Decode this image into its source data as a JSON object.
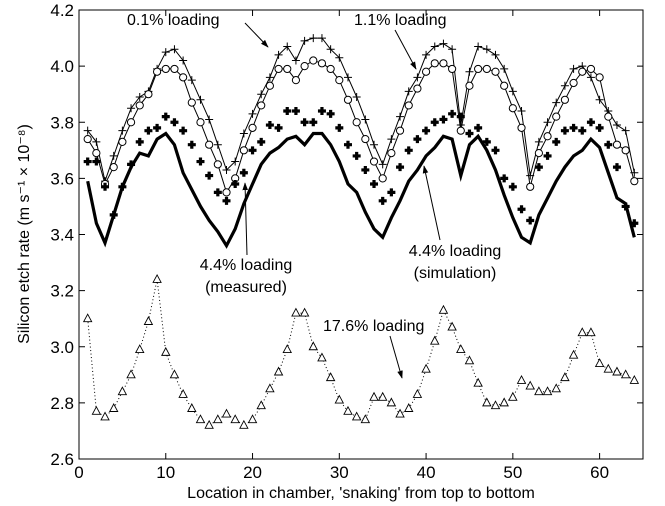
{
  "chart_data": {
    "type": "line",
    "title": "",
    "xlabel": "Location in chamber, 'snaking' from top to bottom",
    "ylabel": "Silicon etch rate (m s⁻¹ × 10⁻⁸)",
    "xlim": [
      0,
      65
    ],
    "ylim": [
      2.6,
      4.2
    ],
    "grid": false,
    "legend": "none",
    "xticks": [
      "0",
      "10",
      "20",
      "30",
      "40",
      "50",
      "60"
    ],
    "yticks": [
      "2.6",
      "2.8",
      "3.0",
      "3.2",
      "3.4",
      "3.6",
      "3.8",
      "4.0",
      "4.2"
    ],
    "x": [
      1,
      2,
      3,
      4,
      5,
      6,
      7,
      8,
      9,
      10,
      11,
      12,
      13,
      14,
      15,
      16,
      17,
      18,
      19,
      20,
      21,
      22,
      23,
      24,
      25,
      26,
      27,
      28,
      29,
      30,
      31,
      32,
      33,
      34,
      35,
      36,
      37,
      38,
      39,
      40,
      41,
      42,
      43,
      44,
      45,
      46,
      47,
      48,
      49,
      50,
      51,
      52,
      53,
      54,
      55,
      56,
      57,
      58,
      59,
      60,
      61,
      62,
      63,
      64
    ],
    "series": [
      {
        "name": "0.1% loading",
        "marker": "+",
        "line": "thin",
        "values": [
          3.77,
          3.73,
          3.59,
          3.68,
          3.77,
          3.85,
          3.89,
          3.91,
          3.99,
          4.05,
          4.06,
          4.02,
          3.95,
          3.88,
          3.81,
          3.72,
          3.63,
          3.66,
          3.76,
          3.83,
          3.9,
          3.96,
          4.04,
          4.07,
          4.02,
          4.09,
          4.1,
          4.1,
          4.06,
          4.03,
          3.96,
          3.89,
          3.81,
          3.72,
          3.65,
          3.74,
          3.82,
          3.91,
          3.96,
          4.04,
          4.07,
          4.08,
          4.06,
          3.79,
          3.98,
          4.07,
          4.06,
          4.04,
          3.99,
          3.91,
          3.84,
          3.61,
          3.73,
          3.8,
          3.87,
          3.93,
          3.99,
          4.0,
          3.96,
          3.88,
          3.84,
          3.79,
          3.77,
          3.62
        ]
      },
      {
        "name": "1.1% loading",
        "marker": "o",
        "line": "thin",
        "values": [
          3.74,
          3.69,
          3.58,
          3.64,
          3.73,
          3.8,
          3.86,
          3.9,
          3.98,
          3.99,
          3.99,
          3.96,
          3.87,
          3.8,
          3.72,
          3.65,
          3.55,
          3.6,
          3.7,
          3.78,
          3.86,
          3.93,
          3.99,
          3.99,
          3.95,
          4.0,
          4.02,
          4.01,
          3.99,
          3.95,
          3.88,
          3.8,
          3.74,
          3.66,
          3.6,
          3.69,
          3.77,
          3.86,
          3.92,
          3.98,
          4.01,
          4.01,
          3.99,
          3.77,
          3.93,
          3.99,
          3.99,
          3.98,
          3.93,
          3.85,
          3.78,
          3.57,
          3.69,
          3.75,
          3.82,
          3.88,
          3.94,
          3.98,
          3.99,
          3.96,
          3.82,
          3.72,
          3.7,
          3.59
        ]
      },
      {
        "name": "4.4% loading (measured)",
        "marker": "*",
        "line": "none",
        "values": [
          3.66,
          3.66,
          3.57,
          3.47,
          3.57,
          3.65,
          3.73,
          3.77,
          3.78,
          3.82,
          3.8,
          3.77,
          3.72,
          3.66,
          3.61,
          3.55,
          3.52,
          3.58,
          3.62,
          3.7,
          3.73,
          3.79,
          3.78,
          3.84,
          3.84,
          3.8,
          3.8,
          3.84,
          3.83,
          3.78,
          3.72,
          3.68,
          3.63,
          3.58,
          3.52,
          3.55,
          3.64,
          3.7,
          3.74,
          3.77,
          3.8,
          3.81,
          3.83,
          3.82,
          3.76,
          3.78,
          3.73,
          3.7,
          3.6,
          3.57,
          3.49,
          3.45,
          3.64,
          3.68,
          3.73,
          3.77,
          3.78,
          3.77,
          3.8,
          3.78,
          3.72,
          3.64,
          3.5,
          3.44
        ]
      },
      {
        "name": "4.4% loading (simulation)",
        "marker": "none",
        "line": "thick",
        "values": [
          3.59,
          3.44,
          3.37,
          3.47,
          3.57,
          3.64,
          3.69,
          3.68,
          3.74,
          3.76,
          3.72,
          3.62,
          3.56,
          3.5,
          3.45,
          3.41,
          3.36,
          3.42,
          3.51,
          3.58,
          3.65,
          3.69,
          3.71,
          3.74,
          3.75,
          3.72,
          3.76,
          3.76,
          3.72,
          3.66,
          3.58,
          3.55,
          3.48,
          3.42,
          3.39,
          3.46,
          3.52,
          3.59,
          3.63,
          3.68,
          3.71,
          3.75,
          3.74,
          3.61,
          3.72,
          3.75,
          3.7,
          3.63,
          3.54,
          3.46,
          3.39,
          3.37,
          3.47,
          3.53,
          3.59,
          3.64,
          3.68,
          3.7,
          3.74,
          3.71,
          3.62,
          3.53,
          3.51,
          3.39
        ]
      },
      {
        "name": "17.6% loading",
        "marker": "triangle",
        "line": "dotted",
        "values": [
          3.1,
          2.77,
          2.75,
          2.78,
          2.84,
          2.9,
          2.99,
          3.09,
          3.24,
          2.98,
          2.9,
          2.83,
          2.78,
          2.74,
          2.72,
          2.74,
          2.76,
          2.74,
          2.72,
          2.74,
          2.79,
          2.85,
          2.91,
          2.99,
          3.12,
          3.12,
          3.0,
          2.96,
          2.89,
          2.81,
          2.77,
          2.75,
          2.74,
          2.82,
          2.82,
          2.8,
          2.76,
          2.78,
          2.83,
          2.92,
          3.02,
          3.13,
          3.07,
          2.99,
          2.95,
          2.87,
          2.8,
          2.79,
          2.8,
          2.82,
          2.88,
          2.86,
          2.84,
          2.84,
          2.85,
          2.89,
          2.97,
          3.05,
          3.05,
          2.94,
          2.92,
          2.91,
          2.9,
          2.88
        ]
      }
    ],
    "annotations": [
      {
        "line1": "0.1% loading",
        "line2": ""
      },
      {
        "line1": "1.1% loading",
        "line2": ""
      },
      {
        "line1": "4.4% loading",
        "line2": "(measured)"
      },
      {
        "line1": "4.4% loading",
        "line2": "(simulation)"
      },
      {
        "line1": "17.6% loading",
        "line2": ""
      }
    ]
  }
}
